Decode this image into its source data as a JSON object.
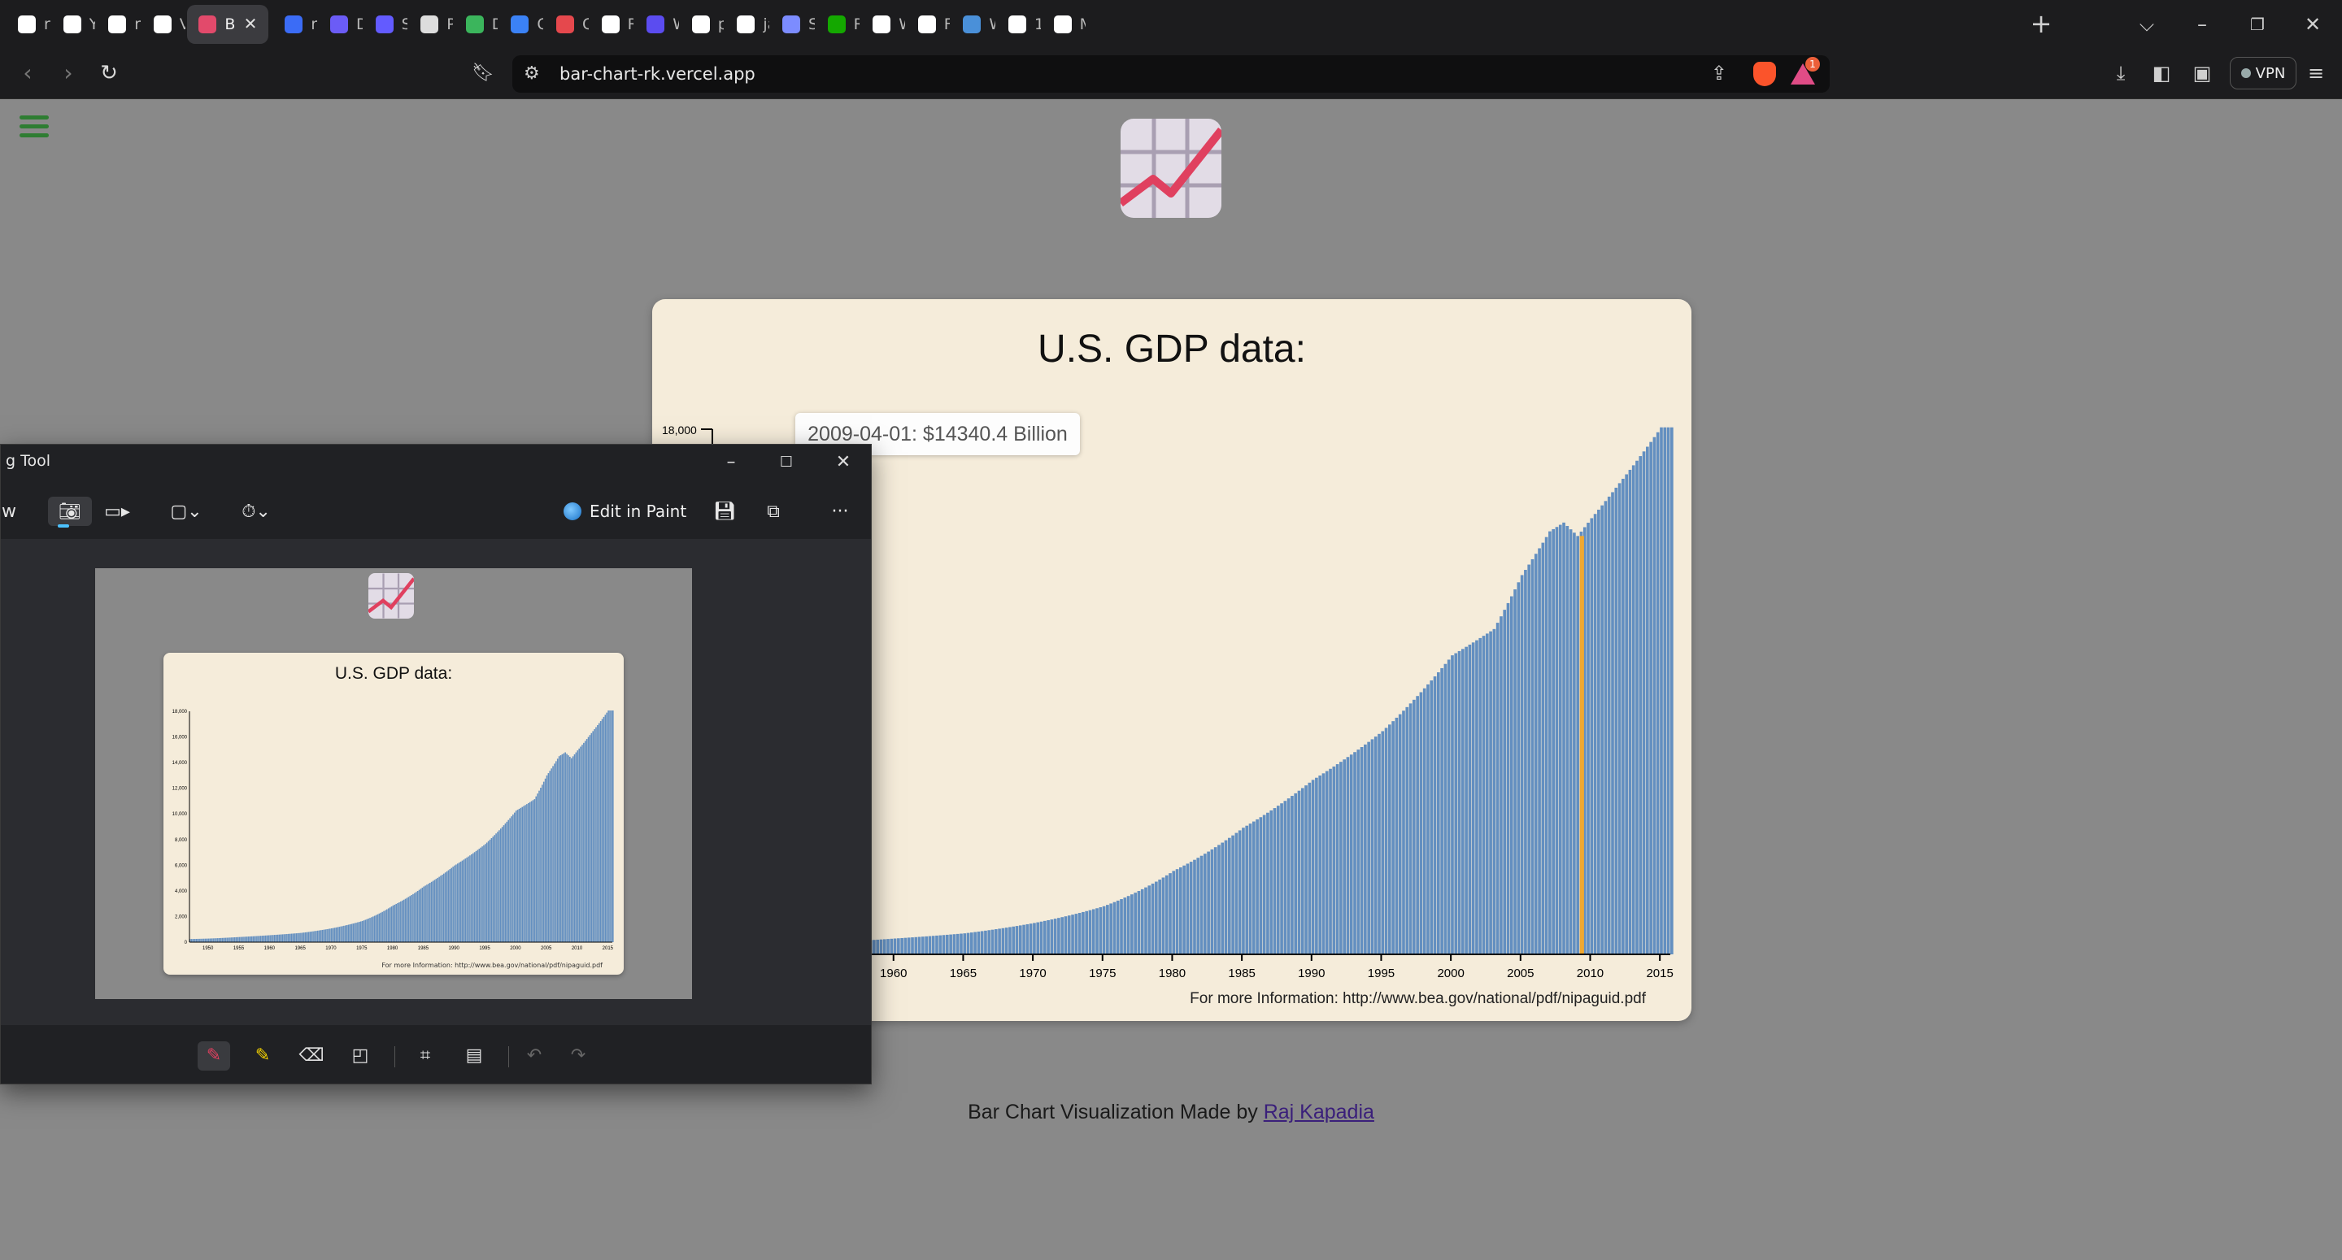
{
  "browser": {
    "tabs": [
      {
        "title": "rkgit",
        "icon": "github-icon",
        "color": "#ffffff"
      },
      {
        "title": "Your",
        "icon": "github-icon",
        "color": "#ffffff"
      },
      {
        "title": "rkgit",
        "icon": "github-icon",
        "color": "#ffffff"
      },
      {
        "title": "Verc",
        "icon": "vercel-icon",
        "color": "#ffffff"
      },
      {
        "title": "B",
        "icon": "chart-icon",
        "color": "#e24a6b",
        "active": true
      },
      {
        "title": "rkgit",
        "icon": "search-icon",
        "color": "#3b6cf6"
      },
      {
        "title": "Dash",
        "icon": "dashboard-icon",
        "color": "#6b5cf6"
      },
      {
        "title": "Strip",
        "icon": "stripe-icon",
        "color": "#635bff"
      },
      {
        "title": "Pricir",
        "icon": "pricing-icon",
        "color": "#dddddd"
      },
      {
        "title": "Dash",
        "icon": "dashboard-icon",
        "color": "#3bb55c"
      },
      {
        "title": "Crisp",
        "icon": "crisp-icon",
        "color": "#3b82f6"
      },
      {
        "title": "Grad",
        "icon": "grad-icon",
        "color": "#e5484d"
      },
      {
        "title": "Rend",
        "icon": "render-icon",
        "color": "#ffffff"
      },
      {
        "title": "Welc",
        "icon": "welcome-icon",
        "color": "#5b4cf0"
      },
      {
        "title": "piyus",
        "icon": "github-icon",
        "color": "#ffffff"
      },
      {
        "title": "jame",
        "icon": "github-icon",
        "color": "#ffffff"
      },
      {
        "title": "Smol",
        "icon": "smol-icon",
        "color": "#7c8cff"
      },
      {
        "title": "Raj K",
        "icon": "upwork-icon",
        "color": "#14a800"
      },
      {
        "title": "Worl",
        "icon": "info-icon",
        "color": "#ffffff"
      },
      {
        "title": "Full S",
        "icon": "info-icon",
        "color": "#ffffff"
      },
      {
        "title": "Welc",
        "icon": "chrome-icon",
        "color": "#4a90d9"
      },
      {
        "title": "12 Fr",
        "icon": "info-icon",
        "color": "#ffffff"
      },
      {
        "title": "My I",
        "icon": "info-icon",
        "color": "#ffffff"
      }
    ],
    "url": "bar-chart-rk.vercel.app",
    "vpn_label": "VPN",
    "rewards_badge": "1"
  },
  "page": {
    "footer_text": "Bar Chart Visualization Made by ",
    "footer_link": "Raj Kapadia",
    "tooltip": "2009-04-01: $14340.4 Billion",
    "accent_bar": "#3a74b8",
    "highlight": "#f0a830"
  },
  "chart_data": {
    "type": "bar",
    "title": "U.S. GDP data:",
    "xlabel": "",
    "ylabel": "",
    "ylim": [
      0,
      18000
    ],
    "y_tick_labels": [
      "18,000"
    ],
    "x_tick_labels": [
      "1960",
      "1965",
      "1970",
      "1975",
      "1980",
      "1985",
      "1990",
      "1995",
      "2000",
      "2005",
      "2010",
      "2015"
    ],
    "x": [
      "1947",
      "1950",
      "1955",
      "1960",
      "1965",
      "1970",
      "1975",
      "1980",
      "1985",
      "1990",
      "1995",
      "2000",
      "2003",
      "2005",
      "2007",
      "2008",
      "2009",
      "2010",
      "2012",
      "2014",
      "2015"
    ],
    "values": [
      243,
      280,
      400,
      543,
      720,
      1075,
      1650,
      2860,
      4340,
      5980,
      7650,
      10250,
      11150,
      13000,
      14500,
      14800,
      14340,
      14950,
      16150,
      17400,
      18064
    ],
    "highlight_point": {
      "x": "2009-04-01",
      "value": 14340.4
    },
    "source": "For more Information: http://www.bea.gov/national/pdf/nipaguid.pdf",
    "grid": false,
    "legend": "none"
  },
  "snipping_tool": {
    "title": "g Tool",
    "mode_partial": "w",
    "edit_in_paint": "Edit in Paint",
    "mini_title": "U.S. GDP data:",
    "mini_source": "For more Information: http://www.bea.gov/national/pdf/nipaguid.pdf",
    "mini_y_ticks": [
      "18,000",
      "16,000",
      "14,000",
      "12,000",
      "10,000",
      "8,000",
      "6,000",
      "4,000",
      "2,000",
      "0"
    ],
    "mini_x_ticks": [
      "1950",
      "1955",
      "1960",
      "1965",
      "1970",
      "1975",
      "1980",
      "1985",
      "1990",
      "1995",
      "2000",
      "2005",
      "2010",
      "2015"
    ]
  }
}
